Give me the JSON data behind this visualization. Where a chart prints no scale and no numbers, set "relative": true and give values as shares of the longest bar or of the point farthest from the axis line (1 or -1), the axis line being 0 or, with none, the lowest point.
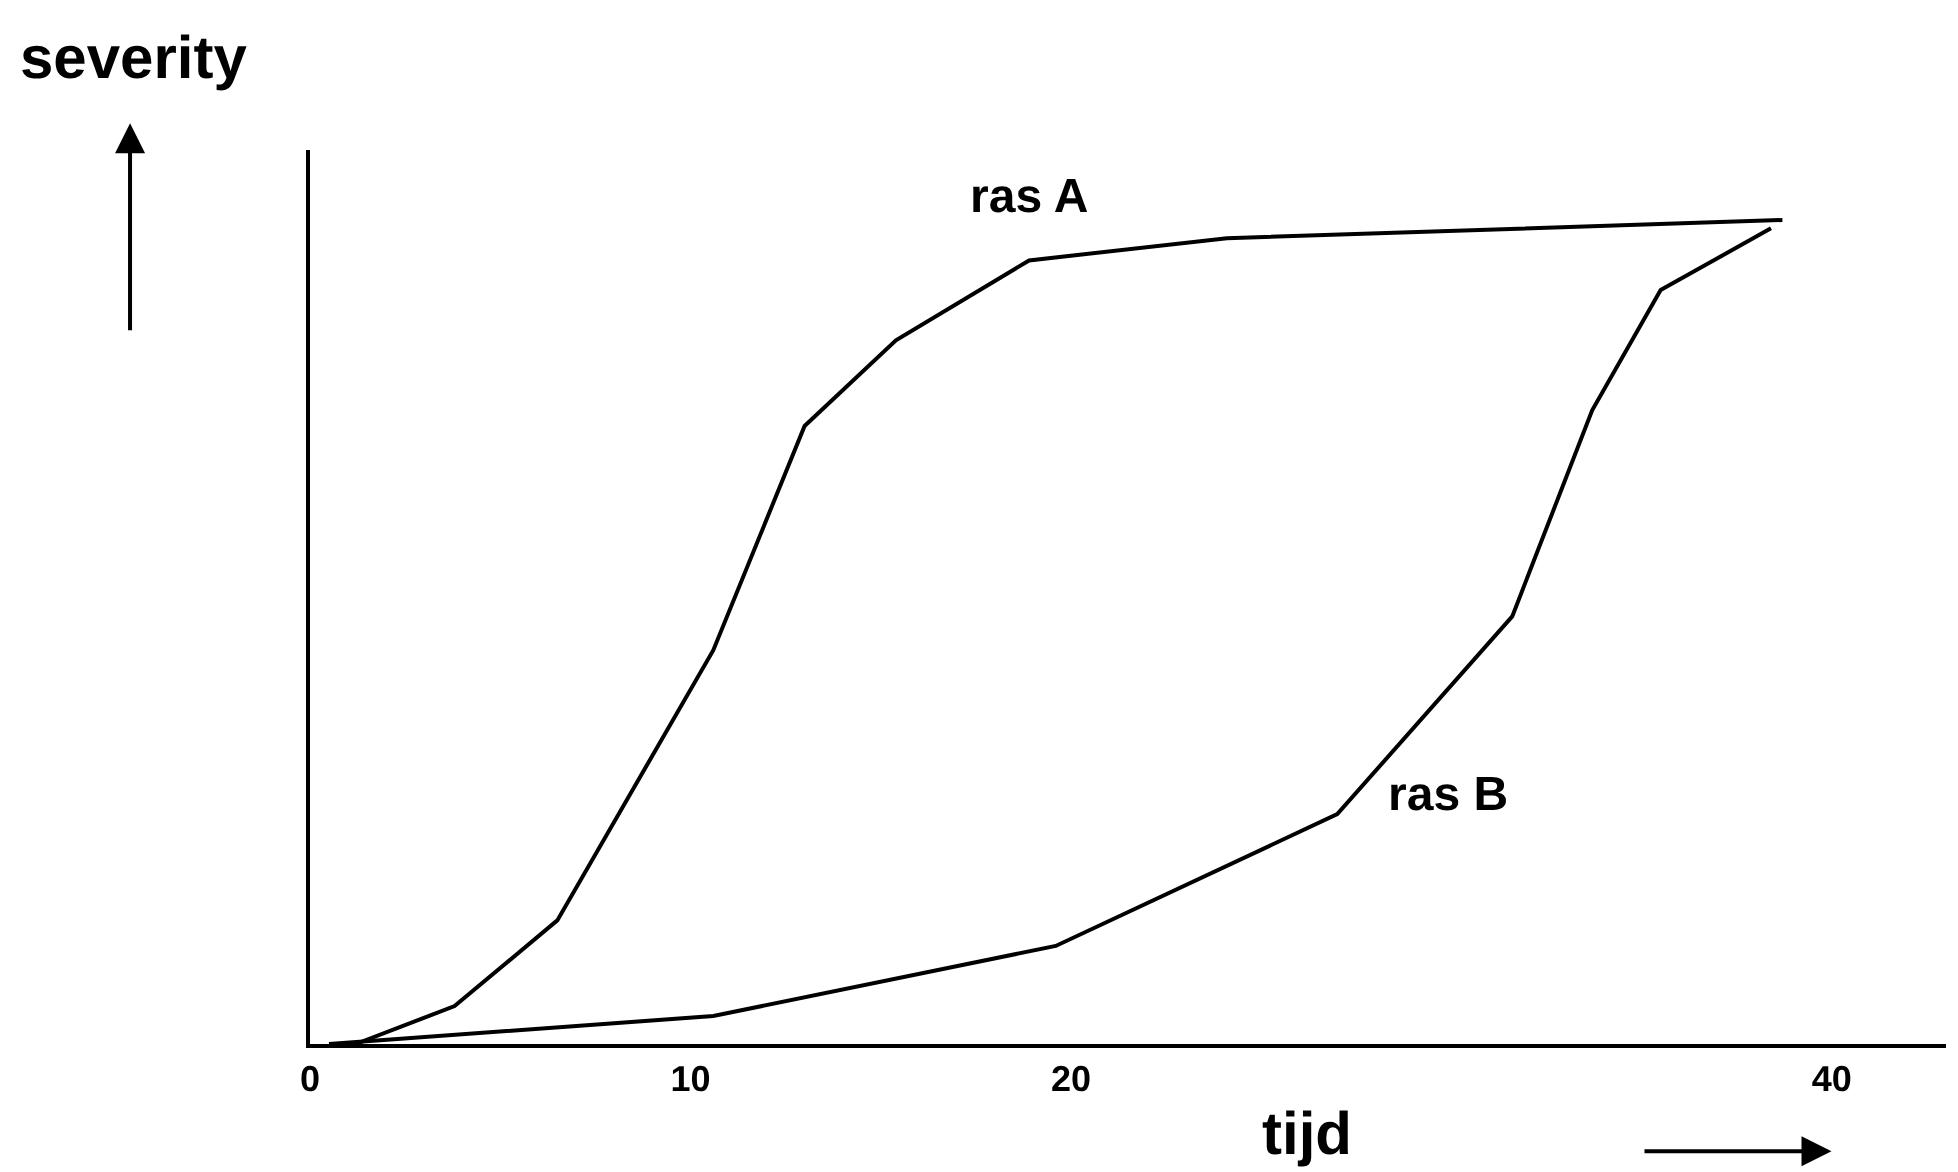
{
  "chart_data": {
    "type": "line",
    "relative": true,
    "xlabel": "tijd",
    "ylabel": "severity",
    "xlim": [
      0,
      43
    ],
    "xticks": [
      0,
      10,
      20,
      40
    ],
    "legend": false,
    "marker": "none",
    "line_style": "solid",
    "series": [
      {
        "name": "ras A",
        "color": "#000000",
        "x": [
          1.2,
          3.8,
          6.5,
          10.6,
          13.0,
          15.4,
          18.9,
          24.1,
          38.7
        ],
        "values": [
          0,
          0.046,
          0.15,
          0.478,
          0.75,
          0.854,
          0.951,
          0.978,
          1
        ]
      },
      {
        "name": "ras B",
        "color": "#000000",
        "x": [
          0.5,
          10.6,
          19.6,
          27.0,
          31.6,
          33.7,
          35.5,
          38.4
        ],
        "values": [
          0,
          0.034,
          0.119,
          0.279,
          0.519,
          0.769,
          0.915,
          0.99
        ]
      }
    ]
  }
}
